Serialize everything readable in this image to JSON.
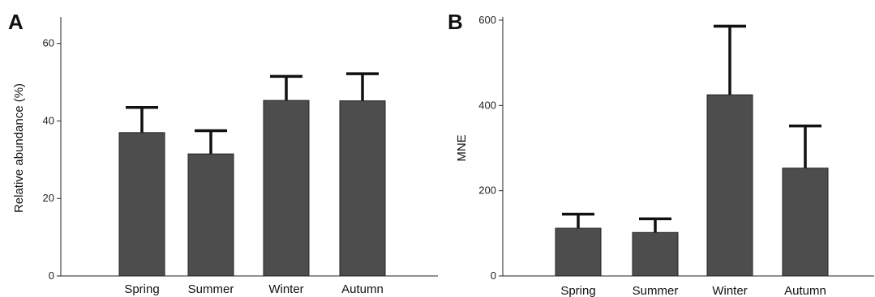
{
  "chart_data": [
    {
      "type": "bar",
      "panel_label": "A",
      "title": "",
      "xlabel": "",
      "ylabel": "Relative abundance (%)",
      "categories": [
        "Spring",
        "Summer",
        "Winter",
        "Autumn"
      ],
      "values": [
        37,
        31.5,
        45.3,
        45.2
      ],
      "error_upper": [
        43.5,
        37.5,
        51.5,
        52.2
      ],
      "ylim": [
        0,
        66
      ],
      "yticks": [
        0,
        20,
        40,
        60
      ],
      "grid": false,
      "legend": "none",
      "bar_color": "#4d4d4d"
    },
    {
      "type": "bar",
      "panel_label": "B",
      "title": "",
      "xlabel": "",
      "ylabel": "MNE",
      "categories": [
        "Spring",
        "Summer",
        "Winter",
        "Autumn"
      ],
      "values": [
        112,
        102,
        425,
        253
      ],
      "error_upper": [
        145,
        134,
        586,
        352
      ],
      "ylim": [
        0,
        600
      ],
      "yticks": [
        0,
        200,
        400,
        600
      ],
      "grid": false,
      "legend": "none",
      "bar_color": "#4d4d4d"
    }
  ]
}
